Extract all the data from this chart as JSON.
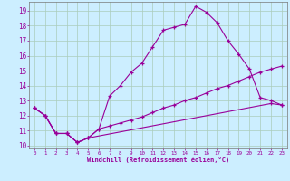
{
  "title": "",
  "xlabel": "Windchill (Refroidissement éolien,°C)",
  "ylabel": "",
  "bg_color": "#cceeff",
  "grid_color": "#aaccbb",
  "line_color": "#990099",
  "xlim": [
    -0.5,
    23.5
  ],
  "ylim": [
    9.8,
    19.6
  ],
  "yticks": [
    10,
    11,
    12,
    13,
    14,
    15,
    16,
    17,
    18,
    19
  ],
  "xticks": [
    0,
    1,
    2,
    3,
    4,
    5,
    6,
    7,
    8,
    9,
    10,
    11,
    12,
    13,
    14,
    15,
    16,
    17,
    18,
    19,
    20,
    21,
    22,
    23
  ],
  "line1_x": [
    0,
    1,
    2,
    3,
    4,
    5,
    6,
    7,
    8,
    9,
    10,
    11,
    12,
    13,
    14,
    15,
    16,
    17,
    18,
    19,
    20,
    21,
    22,
    23
  ],
  "line1_y": [
    12.5,
    12.0,
    10.8,
    10.8,
    10.2,
    10.5,
    11.1,
    13.3,
    14.0,
    14.9,
    15.5,
    16.6,
    17.7,
    17.9,
    18.1,
    19.3,
    18.9,
    18.2,
    17.0,
    16.1,
    15.1,
    13.2,
    13.0,
    12.7
  ],
  "line2_x": [
    0,
    1,
    2,
    3,
    4,
    5,
    6,
    7,
    8,
    9,
    10,
    11,
    12,
    13,
    14,
    15,
    16,
    17,
    18,
    19,
    20,
    21,
    22,
    23
  ],
  "line2_y": [
    12.5,
    12.0,
    10.8,
    10.8,
    10.2,
    10.5,
    11.1,
    11.3,
    11.5,
    11.7,
    11.9,
    12.2,
    12.5,
    12.7,
    13.0,
    13.2,
    13.5,
    13.8,
    14.0,
    14.3,
    14.6,
    14.9,
    15.1,
    15.3
  ],
  "line3_x": [
    0,
    1,
    2,
    3,
    4,
    5,
    22,
    23
  ],
  "line3_y": [
    12.5,
    12.0,
    10.8,
    10.8,
    10.2,
    10.5,
    12.8,
    12.7
  ]
}
